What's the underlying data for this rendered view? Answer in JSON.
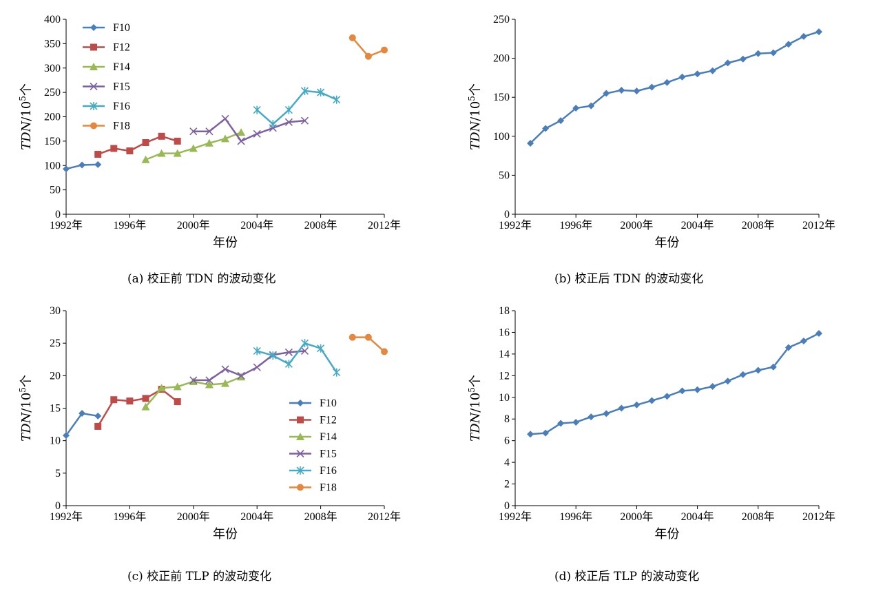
{
  "colors": {
    "F10": "#4a7ebb",
    "F12": "#be4b48",
    "F14": "#98b954",
    "F15": "#7d60a0",
    "F16": "#46aac5",
    "F18": "#e5883e",
    "single": "#4a7ebb",
    "axis": "#000000"
  },
  "chart_data": [
    {
      "id": "a",
      "type": "line",
      "caption": "(a) 校正前 TDN 的波动变化",
      "xlabel": "年份",
      "ylabel_main": "TDN",
      "ylabel_unit": "/10",
      "ylabel_sup": "5",
      "ylabel_tail": "个",
      "xlim": [
        1992,
        2012
      ],
      "xticks": [
        1992,
        1996,
        2000,
        2004,
        2008,
        2012
      ],
      "xtick_suffix": "年",
      "ylim": [
        0,
        400
      ],
      "yticks": [
        0,
        50,
        100,
        150,
        200,
        250,
        300,
        350,
        400
      ],
      "legend": "top-left",
      "grid": false,
      "series": [
        {
          "name": "F10",
          "marker": "diamond",
          "x": [
            1992,
            1993,
            1994
          ],
          "y": [
            93,
            101,
            102
          ]
        },
        {
          "name": "F12",
          "marker": "square",
          "x": [
            1994,
            1995,
            1996,
            1997,
            1998,
            1999
          ],
          "y": [
            123,
            135,
            130,
            147,
            160,
            150
          ]
        },
        {
          "name": "F14",
          "marker": "triangle",
          "x": [
            1997,
            1998,
            1999,
            2000,
            2001,
            2002,
            2003
          ],
          "y": [
            112,
            125,
            125,
            135,
            146,
            155,
            168
          ]
        },
        {
          "name": "F15",
          "marker": "x",
          "x": [
            2000,
            2001,
            2002,
            2003,
            2004,
            2005,
            2006,
            2007
          ],
          "y": [
            170,
            170,
            196,
            150,
            165,
            177,
            189,
            192
          ]
        },
        {
          "name": "F16",
          "marker": "star",
          "x": [
            2004,
            2005,
            2006,
            2007,
            2008,
            2009
          ],
          "y": [
            214,
            185,
            214,
            253,
            250,
            235
          ]
        },
        {
          "name": "F18",
          "marker": "circle",
          "x": [
            2010,
            2011,
            2012
          ],
          "y": [
            362,
            324,
            337
          ]
        }
      ]
    },
    {
      "id": "b",
      "type": "line",
      "caption": "(b) 校正后 TDN 的波动变化",
      "xlabel": "年份",
      "ylabel_main": "TDN",
      "ylabel_unit": "/10",
      "ylabel_sup": "5",
      "ylabel_tail": "个",
      "xlim": [
        1992,
        2012
      ],
      "xticks": [
        1992,
        1996,
        2000,
        2004,
        2008,
        2012
      ],
      "xtick_suffix": "年",
      "ylim": [
        0,
        250
      ],
      "yticks": [
        0,
        50,
        100,
        150,
        200,
        250
      ],
      "grid": false,
      "series": [
        {
          "marker": "diamond",
          "x": [
            1993,
            1994,
            1995,
            1996,
            1997,
            1998,
            1999,
            2000,
            2001,
            2002,
            2003,
            2004,
            2005,
            2006,
            2007,
            2008,
            2009,
            2010,
            2011,
            2012
          ],
          "y": [
            91,
            110,
            120,
            136,
            139,
            155,
            159,
            158,
            163,
            169,
            176,
            180,
            184,
            194,
            199,
            206,
            207,
            218,
            228,
            234
          ]
        }
      ]
    },
    {
      "id": "c",
      "type": "line",
      "caption": "(c) 校正前 TLP 的波动变化",
      "xlabel": "年份",
      "ylabel_main": "TDN",
      "ylabel_unit": "/10",
      "ylabel_sup": "5",
      "ylabel_tail": "个",
      "xlim": [
        1992,
        2012
      ],
      "xticks": [
        1992,
        1996,
        2000,
        2004,
        2008,
        2012
      ],
      "xtick_suffix": "年",
      "ylim": [
        0,
        30
      ],
      "yticks": [
        0,
        5,
        10,
        15,
        20,
        25,
        30
      ],
      "legend": "center-right",
      "grid": false,
      "series": [
        {
          "name": "F10",
          "marker": "diamond",
          "x": [
            1992,
            1993,
            1994
          ],
          "y": [
            10.8,
            14.2,
            13.8
          ]
        },
        {
          "name": "F12",
          "marker": "square",
          "x": [
            1994,
            1995,
            1996,
            1997,
            1998,
            1999
          ],
          "y": [
            12.2,
            16.3,
            16.1,
            16.5,
            17.9,
            16.0
          ]
        },
        {
          "name": "F14",
          "marker": "triangle",
          "x": [
            1997,
            1998,
            1999,
            2000,
            2001,
            2002,
            2003
          ],
          "y": [
            15.2,
            18.1,
            18.3,
            19.1,
            18.6,
            18.8,
            19.8
          ]
        },
        {
          "name": "F15",
          "marker": "x",
          "x": [
            2000,
            2001,
            2002,
            2003,
            2004,
            2005,
            2006,
            2007
          ],
          "y": [
            19.3,
            19.3,
            21.0,
            20.0,
            21.3,
            23.2,
            23.6,
            23.8
          ]
        },
        {
          "name": "F16",
          "marker": "star",
          "x": [
            2004,
            2005,
            2006,
            2007,
            2008,
            2009
          ],
          "y": [
            23.8,
            23.1,
            21.8,
            25.0,
            24.2,
            20.5
          ]
        },
        {
          "name": "F18",
          "marker": "circle",
          "x": [
            2010,
            2011,
            2012
          ],
          "y": [
            25.9,
            25.9,
            23.7
          ]
        }
      ]
    },
    {
      "id": "d",
      "type": "line",
      "caption": "(d) 校正后 TLP 的波动变化",
      "xlabel": "年份",
      "ylabel_main": "TDN",
      "ylabel_unit": "/10",
      "ylabel_sup": "5",
      "ylabel_tail": "个",
      "xlim": [
        1992,
        2012
      ],
      "xticks": [
        1992,
        1996,
        2000,
        2004,
        2008,
        2012
      ],
      "xtick_suffix": "年",
      "ylim": [
        0,
        18
      ],
      "yticks": [
        0,
        2,
        4,
        6,
        8,
        10,
        12,
        14,
        16,
        18
      ],
      "grid": false,
      "series": [
        {
          "marker": "diamond",
          "x": [
            1993,
            1994,
            1995,
            1996,
            1997,
            1998,
            1999,
            2000,
            2001,
            2002,
            2003,
            2004,
            2005,
            2006,
            2007,
            2008,
            2009,
            2010,
            2011,
            2012
          ],
          "y": [
            6.6,
            6.7,
            7.6,
            7.7,
            8.2,
            8.5,
            9.0,
            9.3,
            9.7,
            10.1,
            10.6,
            10.7,
            11.0,
            11.5,
            12.1,
            12.5,
            12.8,
            14.6,
            15.2,
            15.9
          ]
        }
      ]
    }
  ]
}
